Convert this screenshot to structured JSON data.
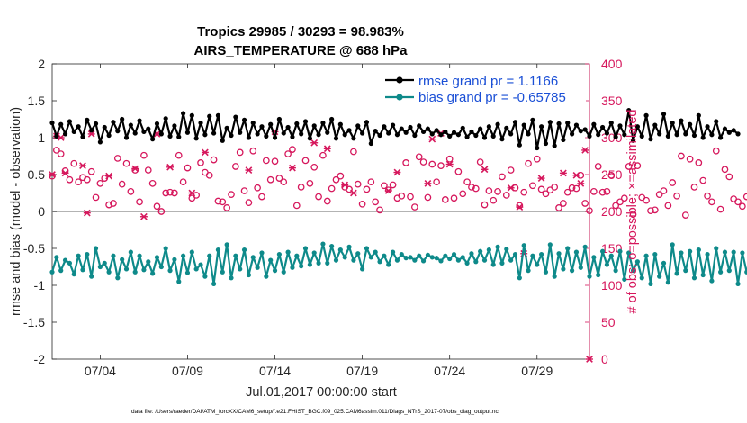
{
  "chart_data": {
    "type": "line",
    "title": [
      "Tropics 29985 / 30293 = 98.983%",
      "AIRS_TEMPERATURE @ 688 hPa"
    ],
    "xlabel": "Jul.01,2017 00:00:00 start",
    "ylabel_left": "rmse and bias (model - observation)",
    "ylabel_right": "# of obs: o=possible; ×=assimilated",
    "ylim_left": [
      -2,
      2
    ],
    "ylim_right": [
      0,
      400
    ],
    "yticks_left": [
      "-2",
      "-1.5",
      "-1",
      "-0.5",
      "0",
      "0.5",
      "1",
      "1.5",
      "2"
    ],
    "yticks_right": [
      "0",
      "50",
      "100",
      "150",
      "200",
      "250",
      "300",
      "350",
      "400"
    ],
    "x_range_days": [
      1.25,
      32.0
    ],
    "xticks": [
      {
        "day": 4,
        "label": "07/04"
      },
      {
        "day": 9,
        "label": "07/09"
      },
      {
        "day": 14,
        "label": "07/14"
      },
      {
        "day": 19,
        "label": "07/19"
      },
      {
        "day": 24,
        "label": "07/24"
      },
      {
        "day": 29,
        "label": "07/29"
      }
    ],
    "x_start_day": 1.25,
    "x_step_days": 0.25,
    "series": [
      {
        "name": "rmse grand pr = 1.1166",
        "color": "#000000",
        "axis": "left",
        "values": [
          1.2,
          1.02,
          1.18,
          1.05,
          1.22,
          1.08,
          1.15,
          1.01,
          1.24,
          1.1,
          1.19,
          0.94,
          1.14,
          1.03,
          1.21,
          1.09,
          1.25,
          1.0,
          1.17,
          1.06,
          1.23,
          1.08,
          1.12,
          0.98,
          1.19,
          1.05,
          1.26,
          1.02,
          1.16,
          1.01,
          1.33,
          1.07,
          1.3,
          0.99,
          1.2,
          1.04,
          1.29,
          1.06,
          1.3,
          0.96,
          1.13,
          1.03,
          1.28,
          1.07,
          1.24,
          1.0,
          1.2,
          1.05,
          1.15,
          1.02,
          1.18,
          1.0,
          1.25,
          1.06,
          1.14,
          1.01,
          1.19,
          1.05,
          1.22,
          0.99,
          1.16,
          1.04,
          1.2,
          1.07,
          1.25,
          0.99,
          1.18,
          1.04,
          1.1,
          0.99,
          1.16,
          1.06,
          1.21,
          0.92,
          1.09,
          1.03,
          1.15,
          1.06,
          1.17,
          1.04,
          1.12,
          1.07,
          1.14,
          1.03,
          1.16,
          1.08,
          1.12,
          1.05,
          1.1,
          1.04,
          1.08,
          1.02,
          1.07,
          1.04,
          1.13,
          1.01,
          1.08,
          1.03,
          1.12,
          1.0,
          1.15,
          1.02,
          1.18,
          0.98,
          1.13,
          1.05,
          1.21,
          0.9,
          1.17,
          1.05,
          1.24,
          0.86,
          1.15,
          0.92,
          1.21,
          0.89,
          1.19,
          0.97,
          1.2,
          1.05,
          1.17,
          1.09,
          1.11,
          1.02,
          1.18,
          1.04,
          1.14,
          1.06,
          1.2,
          1.01,
          1.16,
          1.04,
          1.37,
          0.96,
          1.15,
          1.02,
          1.3,
          0.98,
          1.17,
          1.05,
          1.32,
          1.02,
          1.2,
          1.04,
          1.23,
          1.05,
          1.18,
          1.03,
          1.3,
          1.0,
          1.15,
          1.04,
          1.22,
          1.0,
          1.12,
          1.07,
          1.1,
          1.05
        ]
      },
      {
        "name": "bias grand pr = -0.65785",
        "color": "#0e8a8a",
        "axis": "left",
        "values": [
          -0.82,
          -0.62,
          -0.8,
          -0.66,
          -0.7,
          -0.85,
          -0.6,
          -0.79,
          -0.58,
          -0.88,
          -0.5,
          -0.75,
          -0.7,
          -0.82,
          -0.6,
          -0.9,
          -0.65,
          -0.78,
          -0.55,
          -0.82,
          -0.6,
          -0.79,
          -0.68,
          -0.84,
          -0.62,
          -0.75,
          -0.5,
          -0.8,
          -0.65,
          -0.95,
          -0.6,
          -0.83,
          -0.55,
          -0.78,
          -0.72,
          -0.88,
          -0.6,
          -0.98,
          -0.52,
          -0.82,
          -0.45,
          -0.9,
          -0.6,
          -0.78,
          -0.52,
          -0.86,
          -0.62,
          -0.76,
          -0.56,
          -0.88,
          -0.66,
          -0.8,
          -0.58,
          -0.82,
          -0.55,
          -0.76,
          -0.6,
          -0.74,
          -0.5,
          -0.72,
          -0.56,
          -0.7,
          -0.44,
          -0.7,
          -0.47,
          -0.66,
          -0.52,
          -0.62,
          -0.48,
          -0.66,
          -0.57,
          -0.78,
          -0.5,
          -0.62,
          -0.55,
          -0.68,
          -0.6,
          -0.72,
          -0.55,
          -0.66,
          -0.58,
          -0.63,
          -0.62,
          -0.66,
          -0.6,
          -0.67,
          -0.59,
          -0.62,
          -0.63,
          -0.67,
          -0.6,
          -0.64,
          -0.58,
          -0.66,
          -0.62,
          -0.7,
          -0.57,
          -0.68,
          -0.54,
          -0.66,
          -0.52,
          -0.72,
          -0.48,
          -0.7,
          -0.51,
          -0.66,
          -0.58,
          -0.9,
          -0.46,
          -0.8,
          -0.6,
          -0.72,
          -0.58,
          -0.82,
          -0.45,
          -0.88,
          -0.57,
          -0.78,
          -0.5,
          -0.8,
          -0.55,
          -0.76,
          -0.48,
          -0.88,
          -0.62,
          -0.86,
          -0.54,
          -0.72,
          -0.6,
          -0.8,
          -0.54,
          -0.92,
          -0.56,
          -0.8,
          -0.68,
          -0.9,
          -0.6,
          -0.98,
          -0.58,
          -0.88,
          -0.7,
          -0.96,
          -0.45,
          -0.84,
          -0.56,
          -0.8,
          -0.54,
          -0.9,
          -0.52,
          -0.86,
          -0.58,
          -0.94,
          -0.5,
          -0.82,
          -0.55,
          -0.8,
          -0.55,
          -0.98,
          -0.56,
          -0.82,
          -0.6
        ]
      }
    ],
    "obs_color": "#d6175c",
    "obs_possible": [
      248,
      283,
      278,
      255,
      243,
      265,
      240,
      246,
      243,
      254,
      219,
      238,
      245,
      209,
      211,
      272,
      237,
      265,
      227,
      256,
      213,
      276,
      256,
      238,
      207,
      200,
      225,
      226,
      225,
      276,
      240,
      259,
      218,
      222,
      266,
      253,
      249,
      270,
      214,
      213,
      205,
      223,
      261,
      280,
      228,
      212,
      282,
      232,
      220,
      269,
      243,
      268,
      245,
      240,
      278,
      284,
      208,
      233,
      269,
      238,
      260,
      220,
      276,
      214,
      231,
      243,
      248,
      233,
      230,
      281,
      237,
      210,
      230,
      240,
      213,
      202,
      235,
      229,
      236,
      218,
      221,
      266,
      220,
      206,
      274,
      267,
      219,
      264,
      240,
      262,
      216,
      271,
      218,
      254,
      224,
      240,
      233,
      231,
      267,
      209,
      228,
      215,
      227,
      247,
      222,
      256,
      232,
      208,
      226,
      265,
      235,
      271,
      230,
      224,
      229,
      233,
      205,
      211,
      226,
      232,
      231,
      249,
      211,
      201,
      227,
      261,
      226,
      227,
      249,
      208,
      213,
      218,
      261,
      196,
      262,
      219,
      215,
      201,
      202,
      223,
      228,
      208,
      239,
      221,
      275,
      195,
      271,
      233,
      266,
      242,
      221,
      213,
      282,
      203,
      257,
      247,
      217,
      213,
      207,
      220
    ],
    "obs_assimilated": [
      [
        1.25,
        250
      ],
      [
        1.5,
        302
      ],
      [
        1.75,
        300
      ],
      [
        2.0,
        252
      ],
      [
        3.0,
        262
      ],
      [
        3.25,
        198
      ],
      [
        3.5,
        305
      ],
      [
        4.5,
        248
      ],
      [
        6.0,
        258
      ],
      [
        6.5,
        193
      ],
      [
        7.25,
        305
      ],
      [
        8.0,
        260
      ],
      [
        9.25,
        225
      ],
      [
        10.0,
        280
      ],
      [
        12.5,
        256
      ],
      [
        14.0,
        308
      ],
      [
        15.0,
        259
      ],
      [
        16.25,
        293
      ],
      [
        17.0,
        285
      ],
      [
        18.0,
        236
      ],
      [
        18.5,
        225
      ],
      [
        20.5,
        228
      ],
      [
        21.0,
        253
      ],
      [
        22.75,
        238
      ],
      [
        23.0,
        298
      ],
      [
        23.5,
        306
      ],
      [
        24.0,
        264
      ],
      [
        26.0,
        257
      ],
      [
        27.5,
        232
      ],
      [
        28.0,
        206
      ],
      [
        28.25,
        143
      ],
      [
        29.25,
        245
      ],
      [
        30.5,
        252
      ],
      [
        31.25,
        249
      ],
      [
        31.5,
        238
      ],
      [
        31.75,
        283
      ],
      [
        32.0,
        0
      ]
    ]
  }
}
